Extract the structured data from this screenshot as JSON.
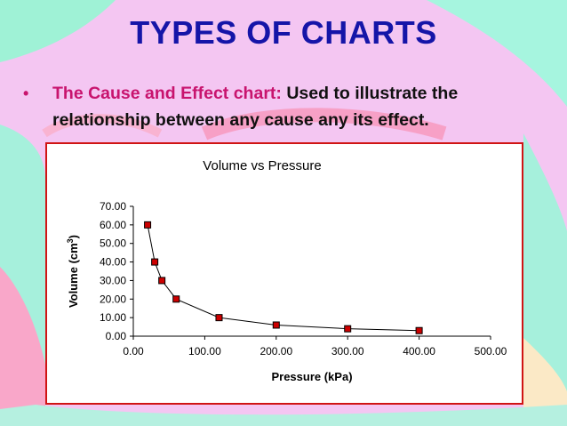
{
  "slide": {
    "title": "TYPES OF CHARTS",
    "bullet_lead": "The Cause and Effect chart:",
    "bullet_body": "Used to illustrate the relationship between any cause any its effect."
  },
  "colors": {
    "title": "#1515a8",
    "bullet_lead": "#c8146e",
    "chart_border": "#d01414",
    "marker_fill": "#cc0000"
  },
  "chart_data": {
    "type": "scatter",
    "title": "Volume vs Pressure",
    "xlabel": "Pressure (kPa)",
    "ylabel": "Volume (cm",
    "ylabel_sup": "3",
    "ylabel_close": ")",
    "xlim": [
      0,
      500
    ],
    "ylim": [
      0,
      70
    ],
    "xticks": [
      "0.00",
      "100.00",
      "200.00",
      "300.00",
      "400.00",
      "500.00"
    ],
    "yticks": [
      "0.00",
      "10.00",
      "20.00",
      "30.00",
      "40.00",
      "50.00",
      "60.00",
      "70.00"
    ],
    "grid": false,
    "legend": false,
    "connected": true,
    "series": [
      {
        "x": [
          20,
          30,
          40,
          60,
          120,
          200,
          300,
          400
        ],
        "y": [
          60,
          40,
          30,
          20,
          10,
          6,
          4,
          3
        ]
      }
    ]
  }
}
